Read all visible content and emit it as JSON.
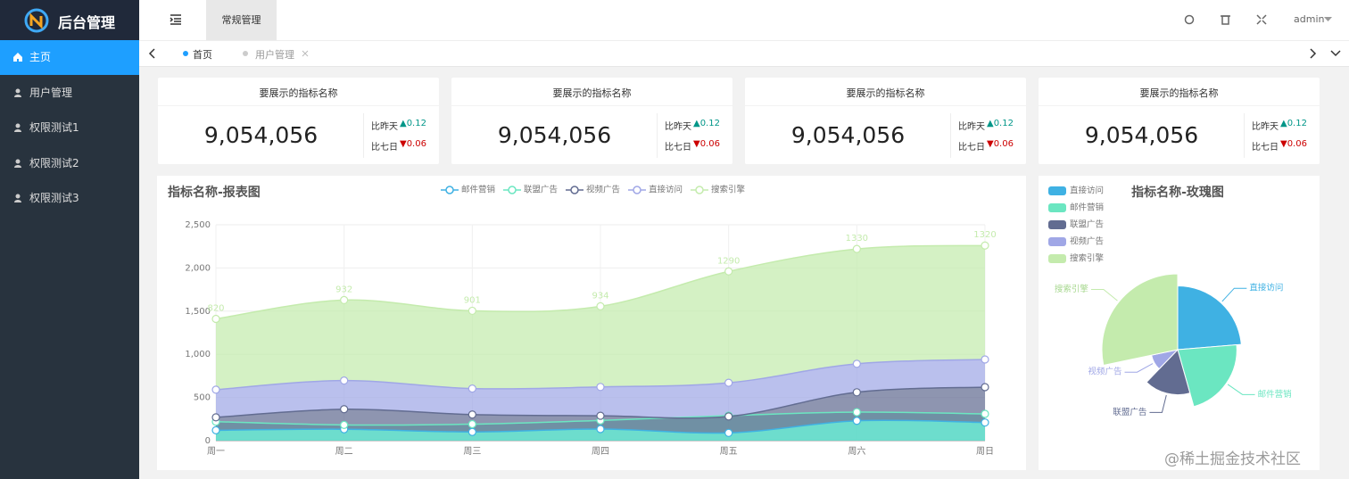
{
  "sidebar": {
    "logo": "后台管理",
    "menu": [
      "主页",
      "用户管理",
      "权限测试1",
      "权限测试2",
      "权限测试3"
    ]
  },
  "header": {
    "tab": "常规管理",
    "user": "admin"
  },
  "tabs": [
    "首页",
    "用户管理"
  ],
  "cards": [
    {
      "title": "要展示的指标名称",
      "value": "9,054,056",
      "compare": [
        {
          "label": "比昨天",
          "change": "▲0.12"
        },
        {
          "label": "比七日",
          "change": "▼0.06"
        }
      ]
    },
    {
      "title": "要展示的指标名称",
      "value": "9,054,056",
      "compare": [
        {
          "label": "比昨天",
          "change": "▲0.12"
        },
        {
          "label": "比七日",
          "change": "▼0.06"
        }
      ]
    },
    {
      "title": "要展示的指标名称",
      "value": "9,054,056",
      "compare": [
        {
          "label": "比昨天",
          "change": "▲0.12"
        },
        {
          "label": "比七日",
          "change": "▼0.06"
        }
      ]
    },
    {
      "title": "要展示的指标名称",
      "value": "9,054,056",
      "compare": [
        {
          "label": "比昨天",
          "change": "▲0.12"
        },
        {
          "label": "比七日",
          "change": "▼0.06"
        }
      ]
    }
  ],
  "chart_data": [
    {
      "type": "area",
      "title": "指标名称-报表图",
      "categories": [
        "周一",
        "周二",
        "周三",
        "周四",
        "周五",
        "周六",
        "周日"
      ],
      "ylim": [
        0,
        2500
      ],
      "yticks": [
        0,
        500,
        {
          "value": 1000,
          "label": "1,000"
        },
        {
          "value": 1500,
          "label": "1,500"
        },
        {
          "value": 2000,
          "label": "2,000"
        },
        {
          "value": 2500,
          "label": "2,500"
        }
      ],
      "grid": true,
      "series": [
        {
          "name": "邮件营销",
          "color": "#3fb1e3",
          "stacked": true,
          "values": [
            120,
            132,
            101,
            134,
            90,
            230,
            210
          ]
        },
        {
          "name": "联盟广告",
          "color": "#6be6c1",
          "stacked": false,
          "values": [
            220,
            182,
            191,
            234,
            290,
            330,
            310
          ]
        },
        {
          "name": "视频广告",
          "color": "#626c91",
          "stacked": true,
          "values": [
            150,
            232,
            201,
            154,
            190,
            330,
            410
          ]
        },
        {
          "name": "直接访问",
          "color": "#a0a7e6",
          "stacked": true,
          "values": [
            320,
            332,
            301,
            334,
            390,
            330,
            320
          ]
        },
        {
          "name": "搜索引擎",
          "color": "#c4ebad",
          "stacked": true,
          "show_labels": true,
          "values": [
            820,
            932,
            901,
            934,
            1290,
            1330,
            1320
          ]
        }
      ]
    },
    {
      "type": "pie",
      "rose": true,
      "title": "指标名称-玫瑰图",
      "categories": [
        "直接访问",
        "邮件营销",
        "联盟广告",
        "视频广告",
        "搜索引擎"
      ],
      "values": [
        335,
        310,
        234,
        135,
        400
      ],
      "colors": [
        "#3fb1e3",
        "#6be6c1",
        "#626c91",
        "#a0a7e6",
        "#c4ebad"
      ]
    }
  ],
  "watermark": "@稀土掘金技术社区"
}
